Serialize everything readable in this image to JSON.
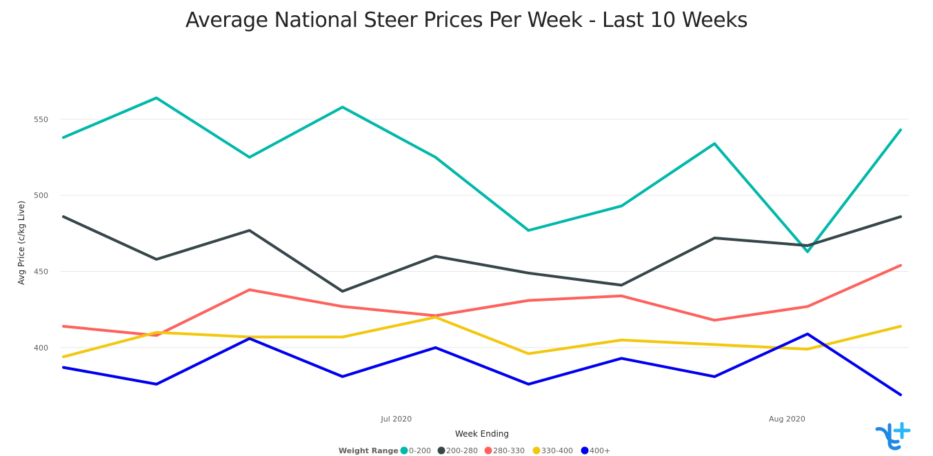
{
  "chart_data": {
    "type": "line",
    "title": "Average National Steer Prices Per Week - Last 10 Weeks",
    "xlabel": "Week Ending",
    "ylabel": "Avg Price (c/kg Live)",
    "x_tick_labels": [
      "Jul 2020",
      "Aug 2020"
    ],
    "y_ticks": [
      400,
      450,
      500,
      550
    ],
    "ylim": [
      361,
      583
    ],
    "grid": true,
    "legend": {
      "title": "Weight Range",
      "position": "bottom"
    },
    "x": [
      1,
      2,
      3,
      4,
      5,
      6,
      7,
      8,
      9,
      10
    ],
    "series": [
      {
        "name": "0-200",
        "color": "#01B8AA",
        "values": [
          538,
          564,
          525,
          558,
          525,
          477,
          493,
          534,
          463,
          543
        ]
      },
      {
        "name": "200-280",
        "color": "#374649",
        "values": [
          486,
          458,
          477,
          437,
          460,
          449,
          441,
          472,
          467,
          486
        ]
      },
      {
        "name": "280-330",
        "color": "#FD625E",
        "values": [
          414,
          408,
          438,
          427,
          421,
          431,
          434,
          418,
          427,
          454
        ]
      },
      {
        "name": "330-400",
        "color": "#F2C80F",
        "values": [
          394,
          410,
          407,
          407,
          420,
          396,
          405,
          402,
          399,
          414
        ]
      },
      {
        "name": "400+",
        "color": "#0000EE",
        "values": [
          387,
          376,
          406,
          381,
          400,
          376,
          393,
          381,
          409,
          369
        ]
      }
    ]
  },
  "logo": {
    "name": "brand-logo",
    "color": "#1E88E5"
  }
}
